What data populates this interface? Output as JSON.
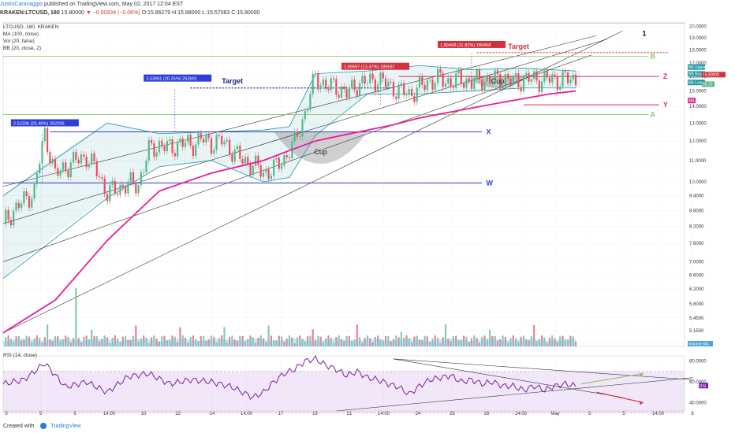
{
  "header": {
    "author": "JustinCaravaggio",
    "published": "published on TradingView.com, May 02, 2017 12:04 EST",
    "symbol": "KRAKEN:LTCUSD, 180",
    "last": "15.80000",
    "change": "▼ −0.00934 (−0.06%)",
    "ohlc": "O:15.86279 H:15.88000 L:15.57083 C:15.80000"
  },
  "indicators": {
    "title": "LTCUSD, 180, KRAKEN",
    "ma": "MA (100, close)",
    "vol": "Vol (20, false)",
    "bb": "BB (20, close, 2)",
    "rsi": "RSI (14, close)"
  },
  "footer": {
    "created_with": "Created with",
    "brand": "TradingView"
  },
  "colors": {
    "up": "#53b987",
    "down": "#eb4d5c",
    "ma": "#e91e99",
    "bb": "#2196a8",
    "blue_level": "#2f3fd6",
    "red_level": "#d2323d",
    "green_level": "#8cc56a",
    "rsi": "#7b1fa2"
  },
  "chart_data": [
    {
      "type": "line",
      "title": "LTCUSD, 180, KRAKEN",
      "xlabel": "",
      "ylabel": "",
      "scale": "log",
      "ylim": [
        4.8,
        20.4
      ],
      "x_tick_labels": [
        "3",
        "5",
        "6",
        "14:00",
        "10",
        "12",
        "14",
        "14:00",
        "17",
        "19",
        "21",
        "14:00",
        "24",
        "26",
        "28",
        "14:00",
        "May",
        "3",
        "5",
        "14:00",
        "8"
      ],
      "y_tick_labels": [
        "20.0000",
        "19.0000",
        "18.0000",
        "17.0000",
        "16.0000",
        "15.0000",
        "14.0000",
        "13.0000",
        "12.0000",
        "11.0000",
        "10.0000",
        "9.4000",
        "8.8000",
        "8.2000",
        "7.6000",
        "7.0000",
        "6.6000",
        "6.2000",
        "5.8000",
        "5.4500",
        "5.1500",
        "4.8700"
      ],
      "last_price_label": "15.80000",
      "right_labels": {
        "bb_upper": "BB Upper",
        "bb_basis": "BB Basis",
        "bb_lower": "BB Lower",
        "ma": "MA",
        "vol": "55.15",
        "volume_ma": "Volume MA"
      },
      "series": [
        {
          "name": "LTCUSD",
          "x": [
            0,
            4,
            8,
            12,
            16,
            20,
            24,
            28,
            32,
            36,
            40,
            44,
            48,
            52,
            56,
            60,
            64,
            68,
            72,
            76,
            80,
            84,
            88,
            92,
            96,
            100,
            104,
            108,
            112,
            116,
            120,
            124,
            128,
            132,
            136,
            140,
            144,
            148,
            152,
            156,
            160,
            164,
            168,
            172,
            176,
            180,
            184,
            188,
            192,
            196,
            200,
            204,
            208,
            212,
            216,
            220
          ],
          "values": [
            8.3,
            8.8,
            9.2,
            9.6,
            12.4,
            10.3,
            10.7,
            11.0,
            11.2,
            10.5,
            9.5,
            9.7,
            9.9,
            9.9,
            11.5,
            11.8,
            11.6,
            11.9,
            11.8,
            12.1,
            11.9,
            12.0,
            11.5,
            11.0,
            10.8,
            10.4,
            10.6,
            11.1,
            11.9,
            13.6,
            16.0,
            15.3,
            15.3,
            14.8,
            15.5,
            15.6,
            15.8,
            15.4,
            15.0,
            14.8,
            15.2,
            15.7,
            15.8,
            15.6,
            15.8,
            15.6,
            15.8,
            15.7,
            15.9,
            15.6,
            15.8,
            15.8,
            15.8,
            15.8,
            15.8,
            15.8
          ]
        },
        {
          "name": "MA (100, close)",
          "x": [
            0,
            20,
            40,
            60,
            80,
            100,
            110,
            120,
            130,
            140,
            150,
            160,
            170,
            180,
            190,
            200,
            210,
            220
          ],
          "values": [
            5.1,
            5.9,
            7.7,
            9.6,
            10.4,
            11.0,
            11.5,
            12.0,
            12.3,
            12.6,
            12.9,
            13.3,
            13.6,
            13.9,
            14.2,
            14.5,
            14.8,
            15.0
          ]
        },
        {
          "name": "BB Upper",
          "x": [
            0,
            40,
            60,
            80,
            100,
            110,
            120,
            140,
            160,
            180,
            200,
            220
          ],
          "values": [
            9.4,
            13.0,
            12.4,
            12.5,
            12.6,
            12.8,
            16.2,
            16.4,
            16.8,
            16.5,
            16.6,
            16.4
          ]
        },
        {
          "name": "BB Lower",
          "x": [
            0,
            40,
            60,
            80,
            100,
            110,
            120,
            140,
            160,
            180,
            200,
            220
          ],
          "values": [
            6.5,
            9.3,
            10.7,
            11.0,
            10.0,
            10.2,
            12.3,
            14.8,
            14.8,
            15.0,
            15.2,
            15.2
          ]
        }
      ],
      "levels": [
        {
          "label": "X",
          "value": 12.5
        },
        {
          "label": "W",
          "value": 9.95
        },
        {
          "label": "Z",
          "value": 16.0
        },
        {
          "label": "Y",
          "value": 14.1
        },
        {
          "label": "B",
          "value": 17.5
        },
        {
          "label": "A",
          "value": 13.5
        },
        {
          "label": "1",
          "value": 19.4
        }
      ],
      "annotations": [
        {
          "text": "Target"
        },
        {
          "text": "Target"
        },
        {
          "text": "Cup"
        },
        {
          "text": "Cup"
        },
        {
          "text": "2.52206 (25.40%) 252206"
        },
        {
          "text": "2.52691 (20.25%) 252691"
        },
        {
          "text": "1.89597 (13.47%) 189597"
        },
        {
          "text": "1.89468 (11.82%) 189468"
        }
      ]
    },
    {
      "type": "line",
      "title": "RSI (14, close)",
      "ylim": [
        32,
        85
      ],
      "y_tick_labels": [
        "80.0000",
        "60.0000",
        "40.0000"
      ],
      "right_labels": {
        "rsi": "RSI"
      },
      "series": [
        {
          "name": "RSI (14, close)",
          "x": [
            0,
            8,
            16,
            24,
            32,
            40,
            48,
            56,
            64,
            72,
            80,
            88,
            96,
            100,
            104,
            108,
            112,
            116,
            120,
            124,
            128,
            132,
            136,
            140,
            144,
            148,
            152,
            156,
            160,
            164,
            168,
            172,
            176,
            180,
            184,
            188,
            192,
            196,
            200,
            204,
            208,
            212,
            216,
            220
          ],
          "values": [
            58,
            62,
            78,
            55,
            60,
            50,
            65,
            68,
            58,
            62,
            60,
            55,
            45,
            50,
            60,
            68,
            72,
            80,
            82,
            76,
            72,
            66,
            70,
            64,
            62,
            58,
            55,
            48,
            56,
            62,
            64,
            66,
            60,
            62,
            58,
            60,
            56,
            56,
            52,
            56,
            52,
            56,
            58,
            56
          ]
        }
      ]
    }
  ]
}
